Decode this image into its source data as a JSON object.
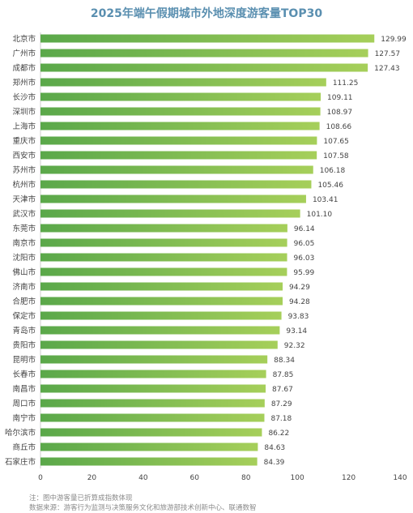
{
  "chart_data": {
    "type": "bar",
    "orientation": "horizontal",
    "title": "2025年端午假期城市外地深度游客量TOP30",
    "categories": [
      "北京市",
      "广州市",
      "成都市",
      "郑州市",
      "长沙市",
      "深圳市",
      "上海市",
      "重庆市",
      "西安市",
      "苏州市",
      "杭州市",
      "天津市",
      "武汉市",
      "东莞市",
      "南京市",
      "沈阳市",
      "佛山市",
      "济南市",
      "合肥市",
      "保定市",
      "青岛市",
      "贵阳市",
      "昆明市",
      "长春市",
      "南昌市",
      "周口市",
      "南宁市",
      "哈尔滨市",
      "商丘市",
      "石家庄市"
    ],
    "values": [
      129.99,
      127.57,
      127.43,
      111.25,
      109.11,
      108.97,
      108.66,
      107.65,
      107.58,
      106.18,
      105.46,
      103.41,
      101.1,
      96.14,
      96.05,
      96.03,
      95.99,
      94.29,
      94.28,
      93.83,
      93.14,
      92.32,
      88.34,
      87.85,
      87.67,
      87.29,
      87.18,
      86.22,
      84.63,
      84.39
    ],
    "value_labels": [
      "129.99",
      "127.57",
      "127.43",
      "111.25",
      "109.11",
      "108.97",
      "108.66",
      "107.65",
      "107.58",
      "106.18",
      "105.46",
      "103.41",
      "101.10",
      "96.14",
      "96.05",
      "96.03",
      "95.99",
      "94.29",
      "94.28",
      "93.83",
      "93.14",
      "92.32",
      "88.34",
      "87.85",
      "87.67",
      "87.29",
      "87.18",
      "86.22",
      "84.63",
      "84.39"
    ],
    "xlim": [
      0,
      140
    ],
    "xticks": [
      "0",
      "20",
      "40",
      "60",
      "80",
      "100",
      "120",
      "140"
    ],
    "grid": false,
    "colors": {
      "bar_start": "#5aa84a",
      "bar_end": "#a6cf5a",
      "title": "#5a8fb0",
      "text": "#444444"
    }
  },
  "footnote": {
    "note": "注：图中游客量已折算成指数体现",
    "source": "数据来源：游客行为监测与决策服务文化和旅游部技术创新中心、联通数智"
  }
}
